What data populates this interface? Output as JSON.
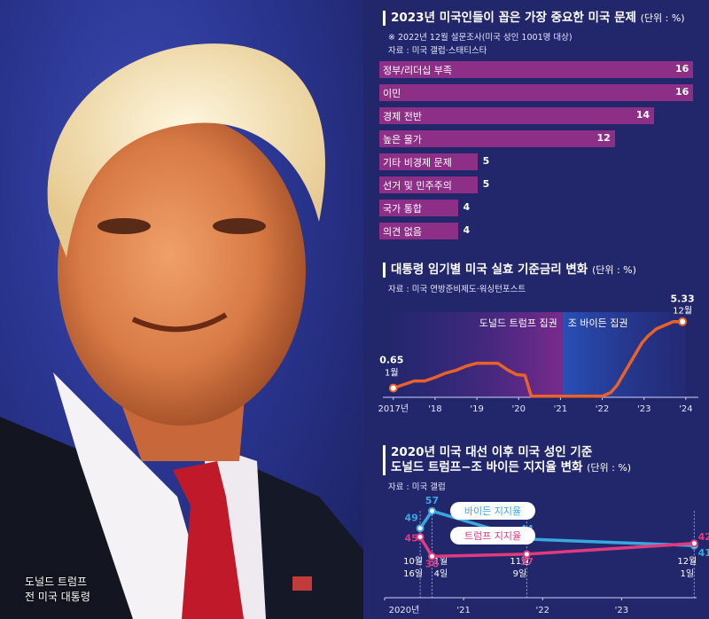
{
  "photo": {
    "caption_name": "도널드 트럼프",
    "caption_role": "전 미국 대통령"
  },
  "colors": {
    "bg": "#22266b",
    "bar": "#8d2f86",
    "trump_line": "#e8622a",
    "biden": "#3aa8e0",
    "trump": "#e23a7e"
  },
  "chart_data": [
    {
      "type": "bar",
      "title": "2023년 미국인들이 꼽은 가장 중요한 미국 문제",
      "unit": "(단위 : %)",
      "note": "※ 2022년 12월 설문조사(미국 성인 1001명 대상)",
      "source": "자료 : 미국 갤럽·스태티스타",
      "categories": [
        "정부/리더십 부족",
        "이민",
        "경제 전반",
        "높은 물가",
        "기타 비경제 문제",
        "선거 및 민주주의",
        "국가 통합",
        "의견 없음"
      ],
      "values": [
        16,
        16,
        14,
        12,
        5,
        5,
        4,
        4
      ],
      "xlim": [
        0,
        16
      ]
    },
    {
      "type": "line",
      "title": "대통령 임기별 미국 실효 기준금리 변화",
      "unit": "(단위 : %)",
      "source": "자료 : 미국 연방준비제도·워싱턴포스트",
      "regions": [
        {
          "label": "도널드 트럼프 집권",
          "from": 2017.0,
          "to": 2021.05
        },
        {
          "label": "조 바이든 집권",
          "from": 2021.05,
          "to": 2024.0
        }
      ],
      "xticks": [
        "2017년",
        "'18",
        "'19",
        "'20",
        "'21",
        "'22",
        "'23",
        "'24"
      ],
      "xtick_values": [
        2017,
        2018,
        2019,
        2020,
        2021,
        2022,
        2023,
        2024
      ],
      "xlim": [
        2016.75,
        2024.3
      ],
      "ylim": [
        0,
        6
      ],
      "x": [
        2017.0,
        2017.25,
        2017.5,
        2017.75,
        2018.0,
        2018.25,
        2018.5,
        2018.75,
        2019.0,
        2019.25,
        2019.5,
        2019.75,
        2019.95,
        2020.15,
        2020.3,
        2021.0,
        2021.5,
        2022.0,
        2022.2,
        2022.35,
        2022.5,
        2022.65,
        2022.8,
        2022.95,
        2023.1,
        2023.3,
        2023.5,
        2023.7,
        2023.92
      ],
      "y": [
        0.65,
        0.9,
        1.15,
        1.15,
        1.4,
        1.7,
        1.9,
        2.2,
        2.4,
        2.4,
        2.4,
        1.9,
        1.6,
        1.55,
        0.08,
        0.08,
        0.08,
        0.08,
        0.33,
        0.83,
        1.58,
        2.33,
        3.08,
        3.83,
        4.33,
        4.83,
        5.08,
        5.33,
        5.33
      ],
      "annotations": [
        {
          "value": "0.65",
          "period": "1월"
        },
        {
          "value": "5.33",
          "period": "12월"
        }
      ]
    },
    {
      "type": "line",
      "title_line1": "2020년 미국 대선 이후 미국 성인 기준",
      "title_line2": "도널드 트럼프−조 바이든 지지율 변화",
      "unit": "(단위 : %)",
      "source": "자료 : 미국 갤럽",
      "xticks": [
        "2020년",
        "'21",
        "'22",
        "'23"
      ],
      "xtick_values": [
        2020.0,
        2021.0,
        2022.0,
        2023.0
      ],
      "xlim": [
        2020.0,
        2023.95
      ],
      "ylim": [
        30,
        62
      ],
      "series": [
        {
          "name": "바이든 지지율",
          "x": [
            2020.45,
            2020.6,
            2021.8,
            2023.92
          ],
          "values": [
            49,
            57,
            44,
            41
          ]
        },
        {
          "name": "트럼프 지지율",
          "x": [
            2020.45,
            2020.6,
            2021.8,
            2023.92
          ],
          "values": [
            45,
            36,
            37,
            42
          ]
        }
      ],
      "date_labels": [
        {
          "month": "10월",
          "day": "16일",
          "x": 2020.45
        },
        {
          "month": "1월",
          "day": "4일",
          "x": 2020.6
        },
        {
          "month": "11월",
          "day": "9일",
          "x": 2021.8
        },
        {
          "month": "12월",
          "day": "1일",
          "x": 2023.92
        }
      ]
    }
  ]
}
